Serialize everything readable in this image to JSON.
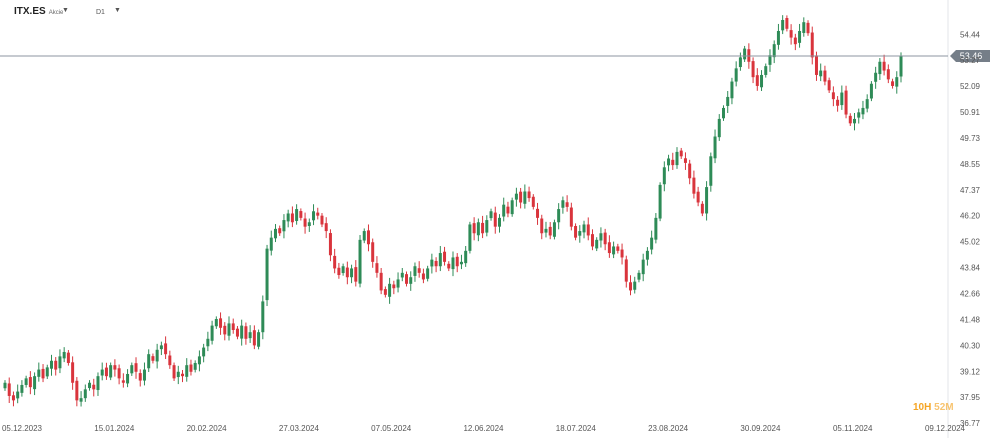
{
  "toolbar": {
    "symbol": "ITX.ES",
    "symbol_type": "Akcie",
    "timeframe": "D1",
    "dropdown_icon": "caret-down-icon"
  },
  "countdown": {
    "hours": "10H",
    "minutes": "52M"
  },
  "colors": {
    "bull": "#2e8b57",
    "bear": "#d9343c",
    "price_line": "#8c96a0",
    "price_label_bg": "#757e88",
    "axis_text": "#555555",
    "countdown": "#f5a524"
  },
  "chart_data": {
    "type": "candlestick",
    "title": "",
    "xlabel": "",
    "ylabel": "",
    "y_ticks": [
      "36.77",
      "37.95",
      "39.12",
      "40.30",
      "41.48",
      "42.66",
      "43.84",
      "45.02",
      "46.20",
      "47.37",
      "48.55",
      "49.73",
      "50.91",
      "52.09",
      "53.27",
      "54.44"
    ],
    "x_ticks": [
      "05.12.2023",
      "15.01.2024",
      "20.02.2024",
      "27.03.2024",
      "07.05.2024",
      "12.06.2024",
      "18.07.2024",
      "23.08.2024",
      "30.09.2024",
      "05.11.2024",
      "09.12.2024"
    ],
    "ylim": [
      36.77,
      55.6
    ],
    "current_price": "53.46",
    "current_price_value": 53.46,
    "grid": false,
    "closes": [
      38.6,
      38.0,
      37.8,
      38.2,
      38.5,
      38.8,
      38.4,
      38.9,
      39.2,
      38.8,
      39.3,
      39.6,
      39.2,
      39.8,
      40.0,
      39.5,
      38.6,
      37.8,
      37.9,
      38.3,
      38.6,
      38.3,
      38.9,
      39.2,
      38.9,
      39.4,
      39.2,
      38.8,
      38.6,
      39.0,
      39.4,
      39.1,
      38.7,
      39.2,
      39.9,
      39.6,
      40.1,
      40.3,
      39.9,
      39.4,
      38.8,
      39.1,
      38.9,
      39.4,
      39.1,
      39.5,
      39.8,
      40.2,
      40.6,
      41.2,
      41.5,
      41.1,
      40.8,
      41.3,
      41.0,
      40.7,
      41.2,
      40.6,
      40.9,
      40.3,
      40.9,
      42.3,
      44.7,
      45.2,
      45.6,
      45.4,
      46.0,
      46.3,
      45.9,
      46.5,
      46.1,
      45.7,
      45.9,
      46.4,
      46.2,
      45.8,
      45.5,
      44.4,
      43.8,
      43.5,
      43.9,
      43.4,
      43.8,
      43.2,
      45.1,
      45.5,
      44.9,
      44.1,
      43.6,
      42.8,
      42.6,
      43.1,
      42.9,
      43.3,
      43.6,
      43.1,
      43.4,
      43.9,
      43.6,
      43.3,
      43.8,
      44.2,
      43.9,
      44.5,
      44.1,
      43.8,
      44.3,
      43.9,
      44.1,
      44.6,
      45.8,
      45.4,
      45.9,
      45.4,
      46.0,
      46.4,
      45.7,
      46.1,
      46.7,
      46.3,
      46.9,
      47.2,
      46.8,
      47.3,
      47.0,
      46.6,
      46.1,
      45.4,
      45.6,
      45.3,
      45.9,
      46.5,
      46.9,
      46.6,
      45.7,
      45.2,
      45.5,
      45.8,
      45.3,
      44.8,
      45.1,
      45.4,
      44.9,
      44.5,
      44.8,
      44.6,
      44.3,
      43.2,
      42.8,
      43.2,
      43.6,
      44.2,
      44.6,
      45.2,
      46.1,
      47.6,
      48.4,
      48.8,
      48.5,
      49.1,
      48.9,
      48.6,
      47.9,
      47.2,
      46.8,
      46.3,
      47.5,
      48.9,
      49.8,
      50.6,
      51.1,
      51.6,
      52.3,
      52.9,
      53.4,
      53.8,
      53.2,
      52.5,
      52.1,
      52.6,
      53.0,
      53.5,
      54.0,
      54.6,
      55.1,
      54.7,
      54.3,
      54.0,
      54.6,
      55.0,
      54.5,
      53.4,
      52.6,
      52.8,
      52.3,
      51.9,
      51.5,
      51.2,
      51.8,
      50.8,
      50.4,
      50.6,
      50.9,
      51.1,
      51.5,
      52.2,
      52.7,
      53.2,
      52.8,
      52.4,
      52.1,
      52.5,
      53.46
    ]
  }
}
